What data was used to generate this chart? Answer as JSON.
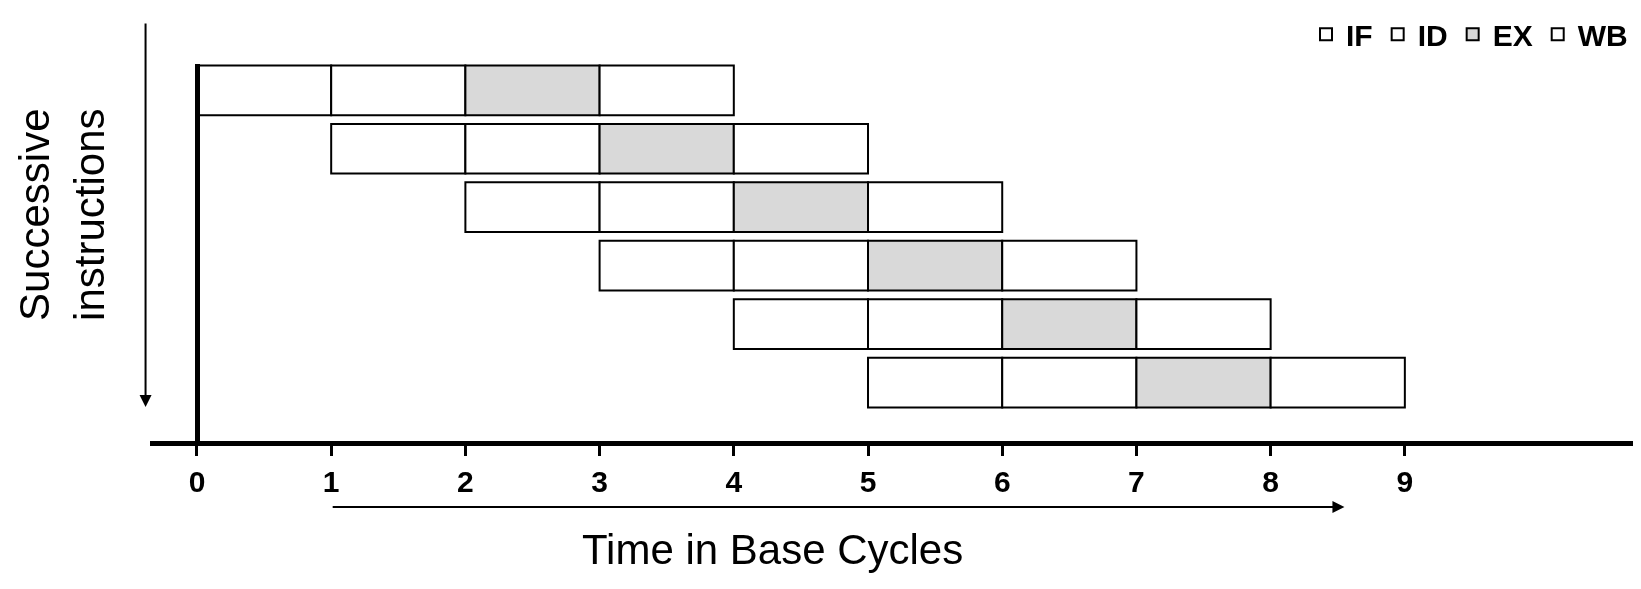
{
  "chart_data": {
    "type": "bar",
    "orientation": "horizontal",
    "xlabel": "Time in Base Cycles",
    "ylabel": "Successive\ninstructions",
    "categories": [
      null,
      null,
      null,
      null,
      null,
      null
    ],
    "series": [
      {
        "name": "IF",
        "color": "#ffffff",
        "values": [
          1,
          1,
          1,
          1,
          1,
          1
        ],
        "base": [
          0,
          1,
          2,
          3,
          4,
          5
        ]
      },
      {
        "name": "ID",
        "color": "#ffffff",
        "values": [
          1,
          1,
          1,
          1,
          1,
          1
        ],
        "base": [
          1,
          2,
          3,
          4,
          5,
          6
        ]
      },
      {
        "name": "EX",
        "color": "#d9d9d9",
        "values": [
          1,
          1,
          1,
          1,
          1,
          1
        ],
        "base": [
          2,
          3,
          4,
          5,
          6,
          7
        ]
      },
      {
        "name": "WB",
        "color": "#ffffff",
        "values": [
          1,
          1,
          1,
          1,
          1,
          1
        ],
        "base": [
          3,
          4,
          5,
          6,
          7,
          8
        ]
      }
    ],
    "xlim": [
      -0.35,
      10.7
    ],
    "xticks": [
      0,
      1,
      2,
      3,
      4,
      5,
      6,
      7,
      8,
      9
    ],
    "legend": "top right",
    "tick_labels": "x"
  }
}
